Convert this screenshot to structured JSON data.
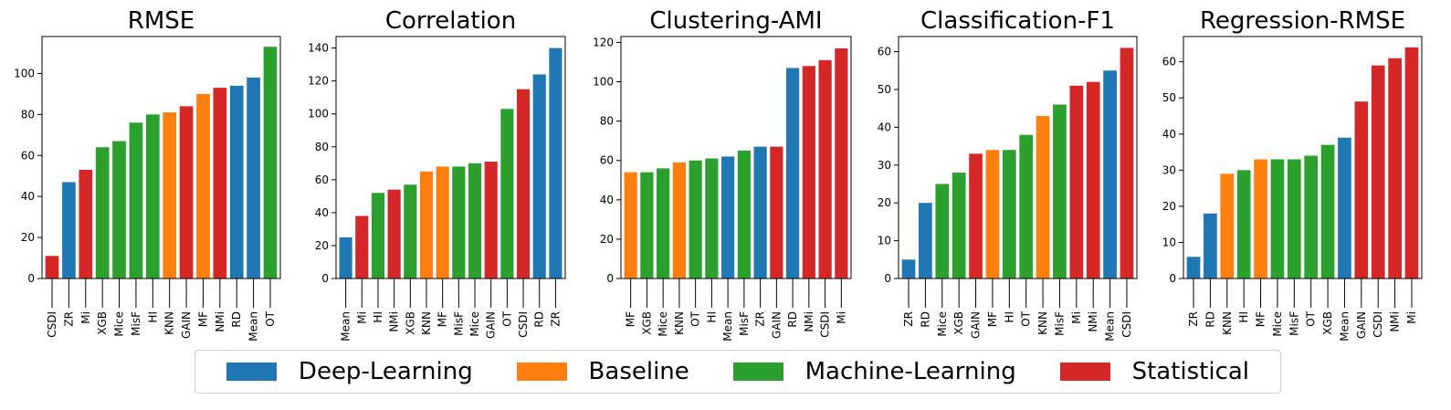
{
  "colors": {
    "Deep-Learning": "#1f77b4",
    "Baseline": "#ff7f0e",
    "Machine-Learning": "#2ca02c",
    "Statistical": "#d62728"
  },
  "legend": {
    "items": [
      {
        "label": "Deep-Learning",
        "color": "#1f77b4"
      },
      {
        "label": "Baseline",
        "color": "#ff7f0e"
      },
      {
        "label": "Machine-Learning",
        "color": "#2ca02c"
      },
      {
        "label": "Statistical",
        "color": "#d62728"
      }
    ]
  },
  "chart_data": [
    {
      "type": "bar",
      "title": "RMSE",
      "categories": [
        "CSDI",
        "ZR",
        "Mi",
        "XGB",
        "Mice",
        "MisF",
        "HI",
        "KNN",
        "GAIN",
        "MF",
        "NMi",
        "RD",
        "Mean",
        "OT"
      ],
      "values": [
        11,
        47,
        53,
        64,
        67,
        76,
        80,
        81,
        84,
        90,
        93,
        94,
        98,
        113
      ],
      "groups": [
        "Statistical",
        "Deep-Learning",
        "Statistical",
        "Machine-Learning",
        "Machine-Learning",
        "Machine-Learning",
        "Machine-Learning",
        "Baseline",
        "Statistical",
        "Baseline",
        "Statistical",
        "Deep-Learning",
        "Deep-Learning",
        "Machine-Learning"
      ],
      "ylim": [
        0,
        118
      ],
      "yticks": [
        0,
        20,
        40,
        60,
        80,
        100
      ],
      "xlabel": "",
      "ylabel": "",
      "grid": false
    },
    {
      "type": "bar",
      "title": "Correlation",
      "categories": [
        "Mean",
        "Mi",
        "HI",
        "NMi",
        "XGB",
        "KNN",
        "MF",
        "MisF",
        "Mice",
        "GAIN",
        "OT",
        "CSDI",
        "RD",
        "ZR"
      ],
      "values": [
        25,
        38,
        52,
        54,
        57,
        65,
        68,
        68,
        70,
        71,
        103,
        115,
        124,
        140
      ],
      "groups": [
        "Deep-Learning",
        "Statistical",
        "Machine-Learning",
        "Statistical",
        "Machine-Learning",
        "Baseline",
        "Baseline",
        "Machine-Learning",
        "Machine-Learning",
        "Statistical",
        "Machine-Learning",
        "Statistical",
        "Deep-Learning",
        "Deep-Learning"
      ],
      "ylim": [
        0,
        147
      ],
      "yticks": [
        0,
        20,
        40,
        60,
        80,
        100,
        120,
        140
      ],
      "xlabel": "",
      "ylabel": "",
      "grid": false
    },
    {
      "type": "bar",
      "title": "Clustering-AMI",
      "categories": [
        "MF",
        "XGB",
        "Mice",
        "KNN",
        "OT",
        "HI",
        "Mean",
        "MisF",
        "ZR",
        "GAIN",
        "RD",
        "NMi",
        "CSDI",
        "Mi"
      ],
      "values": [
        54,
        54,
        56,
        59,
        60,
        61,
        62,
        65,
        67,
        67,
        107,
        108,
        111,
        117
      ],
      "groups": [
        "Baseline",
        "Machine-Learning",
        "Machine-Learning",
        "Baseline",
        "Machine-Learning",
        "Machine-Learning",
        "Deep-Learning",
        "Machine-Learning",
        "Deep-Learning",
        "Statistical",
        "Deep-Learning",
        "Statistical",
        "Statistical",
        "Statistical"
      ],
      "ylim": [
        0,
        123
      ],
      "yticks": [
        0,
        20,
        40,
        60,
        80,
        100,
        120
      ],
      "xlabel": "",
      "ylabel": "",
      "grid": false
    },
    {
      "type": "bar",
      "title": "Classification-F1",
      "categories": [
        "ZR",
        "RD",
        "Mice",
        "XGB",
        "GAIN",
        "MF",
        "HI",
        "OT",
        "KNN",
        "MisF",
        "Mi",
        "NMi",
        "Mean",
        "CSDI"
      ],
      "values": [
        5,
        20,
        25,
        28,
        33,
        34,
        34,
        38,
        43,
        46,
        51,
        52,
        55,
        61
      ],
      "groups": [
        "Deep-Learning",
        "Deep-Learning",
        "Machine-Learning",
        "Machine-Learning",
        "Statistical",
        "Baseline",
        "Machine-Learning",
        "Machine-Learning",
        "Baseline",
        "Machine-Learning",
        "Statistical",
        "Statistical",
        "Deep-Learning",
        "Statistical"
      ],
      "ylim": [
        0,
        64
      ],
      "yticks": [
        0,
        10,
        20,
        30,
        40,
        50,
        60
      ],
      "xlabel": "",
      "ylabel": "",
      "grid": false
    },
    {
      "type": "bar",
      "title": "Regression-RMSE",
      "categories": [
        "ZR",
        "RD",
        "KNN",
        "HI",
        "MF",
        "Mice",
        "MisF",
        "OT",
        "XGB",
        "Mean",
        "GAIN",
        "CSDI",
        "NMi",
        "Mi"
      ],
      "values": [
        6,
        18,
        29,
        30,
        33,
        33,
        33,
        34,
        37,
        39,
        49,
        59,
        61,
        64
      ],
      "groups": [
        "Deep-Learning",
        "Deep-Learning",
        "Baseline",
        "Machine-Learning",
        "Baseline",
        "Machine-Learning",
        "Machine-Learning",
        "Machine-Learning",
        "Machine-Learning",
        "Deep-Learning",
        "Statistical",
        "Statistical",
        "Statistical",
        "Statistical"
      ],
      "ylim": [
        0,
        67
      ],
      "yticks": [
        0,
        10,
        20,
        30,
        40,
        50,
        60
      ],
      "xlabel": "",
      "ylabel": "",
      "grid": false
    }
  ]
}
